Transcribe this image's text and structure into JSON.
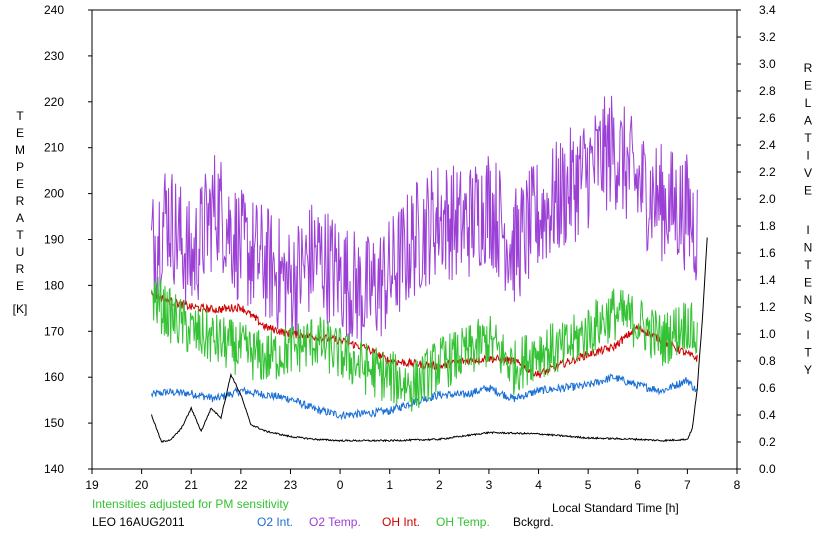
{
  "chart_data": {
    "type": "line",
    "left_axis_title": "TEMPERATURE",
    "left_axis_unit": "[K]",
    "right_axis_title": "RELATIVE INTENSITY",
    "xlabel": "Local Standard Time [h]",
    "note": "Intensities adjusted for PM sensitivity",
    "station": "LEO 16AUG2011",
    "x_ticks": [
      "19",
      "20",
      "21",
      "22",
      "23",
      "0",
      "1",
      "2",
      "3",
      "4",
      "5",
      "6",
      "7",
      "8"
    ],
    "xlim": [
      19,
      32
    ],
    "y_left_ticks": [
      "140",
      "150",
      "160",
      "170",
      "180",
      "190",
      "200",
      "210",
      "220",
      "230",
      "240"
    ],
    "ylim_left": [
      140,
      240
    ],
    "y_right_ticks": [
      "0.0",
      "0.2",
      "0.4",
      "0.6",
      "0.8",
      "1.0",
      "1.2",
      "1.4",
      "1.6",
      "1.8",
      "2.0",
      "2.2",
      "2.4",
      "2.6",
      "2.8",
      "3.0",
      "3.2",
      "3.4"
    ],
    "ylim_right": [
      0,
      3.4
    ],
    "grid": false,
    "legend_position": "bottom",
    "series": [
      {
        "name": "O2 Int.",
        "axis": "right",
        "color": "#1a6fd6",
        "noise": 0.03,
        "x": [
          20.2,
          20.5,
          21,
          21.5,
          22,
          22.5,
          23,
          23.5,
          24,
          24.5,
          25,
          25.5,
          26,
          26.5,
          27,
          27.5,
          28,
          28.5,
          29,
          29.5,
          30,
          30.5,
          31,
          31.2
        ],
        "y": [
          0.55,
          0.57,
          0.56,
          0.52,
          0.58,
          0.55,
          0.52,
          0.44,
          0.4,
          0.41,
          0.43,
          0.5,
          0.55,
          0.55,
          0.6,
          0.52,
          0.58,
          0.6,
          0.62,
          0.68,
          0.62,
          0.58,
          0.66,
          0.57
        ]
      },
      {
        "name": "O2 Temp.",
        "axis": "left",
        "color": "#9b3fd6",
        "noise": 13,
        "x": [
          20.2,
          20.5,
          21,
          21.5,
          22,
          22.5,
          23,
          23.5,
          24,
          24.5,
          25,
          25.5,
          26,
          26.5,
          27,
          27.5,
          28,
          28.5,
          29,
          29.5,
          30,
          30.5,
          31,
          31.2
        ],
        "y": [
          188,
          196,
          185,
          198,
          188,
          185,
          180,
          187,
          182,
          178,
          182,
          190,
          195,
          193,
          198,
          188,
          195,
          200,
          205,
          210,
          202,
          198,
          196,
          192
        ]
      },
      {
        "name": "OH Int.",
        "axis": "right",
        "color": "#d00000",
        "noise": 0.03,
        "x": [
          20.2,
          20.5,
          21,
          21.5,
          22,
          22.5,
          23,
          23.5,
          24,
          24.5,
          25,
          25.5,
          26,
          26.5,
          27,
          27.5,
          28,
          28.5,
          29,
          29.5,
          30,
          30.5,
          31,
          31.2
        ],
        "y": [
          1.3,
          1.25,
          1.2,
          1.18,
          1.2,
          1.05,
          1.0,
          0.98,
          0.95,
          0.9,
          0.8,
          0.78,
          0.76,
          0.8,
          0.82,
          0.8,
          0.7,
          0.78,
          0.85,
          0.9,
          1.05,
          0.95,
          0.85,
          0.82
        ]
      },
      {
        "name": "OH Temp.",
        "axis": "left",
        "color": "#33c233",
        "noise": 6,
        "x": [
          20.2,
          20.5,
          21,
          21.5,
          22,
          22.5,
          23,
          23.5,
          24,
          24.5,
          25,
          25.5,
          26,
          26.5,
          27,
          27.5,
          28,
          28.5,
          29,
          29.5,
          30,
          30.5,
          31,
          31.2
        ],
        "y": [
          178,
          174,
          170,
          168,
          166,
          164,
          166,
          168,
          165,
          162,
          160,
          158,
          163,
          165,
          168,
          162,
          166,
          166,
          170,
          174,
          172,
          168,
          172,
          168
        ]
      },
      {
        "name": "Bckgrd.",
        "axis": "right",
        "color": "#000000",
        "noise": 0.006,
        "x": [
          20.2,
          20.4,
          20.6,
          20.8,
          21,
          21.2,
          21.4,
          21.6,
          21.8,
          22,
          22.2,
          22.5,
          23,
          23.5,
          24,
          25,
          26,
          27,
          28,
          29,
          30,
          30.5,
          31,
          31.1,
          31.2,
          31.3,
          31.4
        ],
        "y": [
          0.4,
          0.2,
          0.22,
          0.3,
          0.45,
          0.28,
          0.45,
          0.38,
          0.7,
          0.55,
          0.33,
          0.28,
          0.24,
          0.22,
          0.21,
          0.21,
          0.22,
          0.27,
          0.26,
          0.23,
          0.22,
          0.21,
          0.22,
          0.3,
          0.6,
          1.1,
          1.72
        ]
      }
    ]
  }
}
